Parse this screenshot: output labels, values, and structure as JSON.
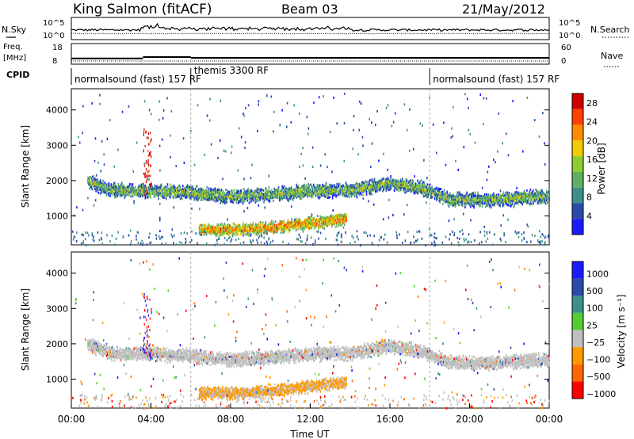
{
  "header": {
    "station": "King Salmon (fitACF)",
    "beam": "Beam 03",
    "date": "21/May/2012"
  },
  "chart_data": [
    {
      "type": "line",
      "panel": "noise",
      "left_label": "N.Sky",
      "right_label": "N.Search",
      "left_ticks": [
        "10^5",
        "10^0"
      ],
      "right_ticks": [
        "10^5",
        "10^0"
      ]
    },
    {
      "type": "line",
      "panel": "frequency",
      "left_label_1": "Freq.",
      "left_label_2": "[MHz]",
      "right_label": "Nave",
      "left_ticks": [
        "18",
        "8"
      ],
      "right_ticks": [
        "60",
        "0"
      ],
      "freq_segments": [
        {
          "start": 0,
          "end": 3.6,
          "value": 10.5
        },
        {
          "start": 3.6,
          "end": 6.0,
          "value": 11.2
        },
        {
          "start": 6.0,
          "end": 24.0,
          "value": 10.8
        }
      ]
    },
    {
      "type": "table",
      "panel": "cpid",
      "label": "CPID",
      "segments": [
        {
          "label": "normalsound (fast) 157 RF",
          "start": 0,
          "end": 6.0
        },
        {
          "label": "themis 3300 RF",
          "start": 6.0,
          "end": 18.0
        },
        {
          "label": "normalsound (fast) 157 RF",
          "start": 18.0,
          "end": 24.0
        }
      ]
    },
    {
      "type": "heatmap",
      "panel": "power",
      "ylabel": "Slant Range [km]",
      "yticks": [
        1000,
        2000,
        3000,
        4000
      ],
      "ylim": [
        180,
        4600
      ],
      "colorbar_label": "Power [dB]",
      "colorbar_ticks": [
        4,
        8,
        12,
        16,
        20,
        24,
        28
      ],
      "colorbar_range": [
        0,
        30
      ],
      "colors": [
        "#1a1aff",
        "#2a4ca8",
        "#3d8f8c",
        "#5fb060",
        "#8ccd32",
        "#f0cc00",
        "#ff8c00",
        "#ff4000",
        "#d10000"
      ],
      "bands": [
        {
          "t0": 0.8,
          "t1": 24.0,
          "range": [
            [
              0.8,
              2020
            ],
            [
              2.0,
              1760
            ],
            [
              4.0,
              1740
            ],
            [
              6.0,
              1680
            ],
            [
              8.0,
              1580
            ],
            [
              10.0,
              1640
            ],
            [
              12.0,
              1740
            ],
            [
              14.0,
              1760
            ],
            [
              16.0,
              1960
            ],
            [
              17.5,
              1820
            ],
            [
              19.0,
              1500
            ],
            [
              21.0,
              1480
            ],
            [
              23.0,
              1560
            ],
            [
              24.0,
              1580
            ]
          ],
          "width": 150,
          "power": 13
        },
        {
          "t0": 6.4,
          "t1": 13.8,
          "range": [
            [
              6.4,
              650
            ],
            [
              8.0,
              630
            ],
            [
              10.0,
              700
            ],
            [
              12.0,
              830
            ],
            [
              13.8,
              940
            ]
          ],
          "width": 130,
          "power": 21
        }
      ]
    },
    {
      "type": "heatmap",
      "panel": "velocity",
      "ylabel": "Slant Range [km]",
      "yticks": [
        1000,
        2000,
        3000,
        4000
      ],
      "ylim": [
        180,
        4600
      ],
      "colorbar_label": "Velocity [m s⁻¹]",
      "colorbar_ticks": [
        "1000",
        "500",
        "100",
        "25",
        "−25",
        "−100",
        "−500",
        "−1000"
      ],
      "colorbar_range": [
        -1200,
        1200
      ],
      "colors": [
        "#1a1aff",
        "#2a4ca8",
        "#3d8f8c",
        "#55cc33",
        "#c0c0c0",
        "#ff9900",
        "#ff6600",
        "#ff0000"
      ],
      "xlabel": "Time UT",
      "xticks": [
        "00:00",
        "04:00",
        "08:00",
        "12:00",
        "16:00",
        "20:00",
        "00:00"
      ],
      "xlim": [
        0,
        24
      ]
    }
  ]
}
